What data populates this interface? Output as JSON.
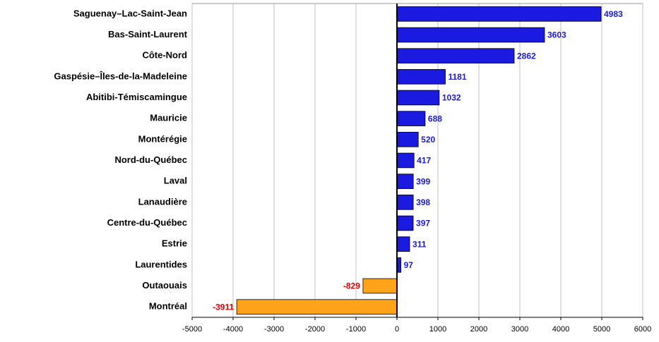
{
  "chart_data": {
    "type": "hbar",
    "categories": [
      "Saguenay–Lac-Saint-Jean",
      "Bas-Saint-Laurent",
      "Côte-Nord",
      "Gaspésie–Îles-de-la-Madeleine",
      "Abitibi-Témiscamingue",
      "Mauricie",
      "Montérégie",
      "Nord-du-Québec",
      "Laval",
      "Lanaudière",
      "Centre-du-Québec",
      "Estrie",
      "Laurentides",
      "Outaouais",
      "Montréal"
    ],
    "values": [
      4983,
      3603,
      2862,
      1181,
      1032,
      688,
      520,
      417,
      399,
      398,
      397,
      311,
      97,
      -829,
      -3911
    ],
    "positive_color": "#1a1ae0",
    "negative_color": "#ffa31a",
    "positive_label_color": "#1a1ae0",
    "negative_label_color": "#e00000",
    "xlim": [
      -5000,
      6000
    ],
    "xticks": [
      -5000,
      -4000,
      -3000,
      -2000,
      -1000,
      0,
      1000,
      2000,
      3000,
      4000,
      5000,
      6000
    ],
    "grid": true
  }
}
